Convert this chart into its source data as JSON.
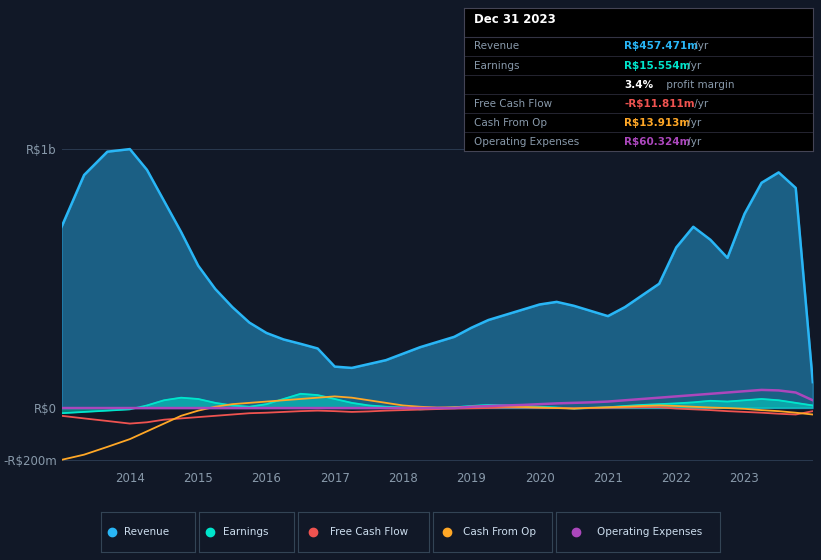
{
  "bg_color": "#111827",
  "plot_bg_color": "#111827",
  "grid_color": "#2a3a50",
  "text_color": "#8899aa",
  "title_color": "#ffffff",
  "revenue_color": "#29b6f6",
  "earnings_color": "#00e5cc",
  "free_cash_flow_color": "#ef5350",
  "cash_from_op_color": "#ffa726",
  "operating_expenses_color": "#ab47bc",
  "revenue_fill_alpha": 0.45,
  "earnings_fill_alpha": 0.5,
  "years": [
    2013.0,
    2013.33,
    2013.67,
    2014.0,
    2014.25,
    2014.5,
    2014.75,
    2015.0,
    2015.25,
    2015.5,
    2015.75,
    2016.0,
    2016.25,
    2016.5,
    2016.75,
    2017.0,
    2017.25,
    2017.5,
    2017.75,
    2018.0,
    2018.25,
    2018.5,
    2018.75,
    2019.0,
    2019.25,
    2019.5,
    2019.75,
    2020.0,
    2020.25,
    2020.5,
    2020.75,
    2021.0,
    2021.25,
    2021.5,
    2021.75,
    2022.0,
    2022.25,
    2022.5,
    2022.75,
    2023.0,
    2023.25,
    2023.5,
    2023.75,
    2024.0
  ],
  "revenue": [
    700,
    900,
    990,
    1000,
    920,
    800,
    680,
    550,
    460,
    390,
    330,
    290,
    265,
    248,
    230,
    160,
    155,
    170,
    185,
    210,
    235,
    255,
    275,
    310,
    340,
    360,
    380,
    400,
    410,
    395,
    375,
    355,
    390,
    435,
    480,
    620,
    700,
    650,
    580,
    750,
    870,
    910,
    850,
    100
  ],
  "earnings": [
    -20,
    -15,
    -10,
    -5,
    10,
    30,
    40,
    35,
    20,
    10,
    5,
    15,
    35,
    55,
    50,
    35,
    20,
    10,
    5,
    2,
    -5,
    -2,
    3,
    8,
    12,
    10,
    8,
    5,
    2,
    -2,
    0,
    3,
    8,
    12,
    15,
    18,
    22,
    28,
    25,
    30,
    35,
    30,
    20,
    10
  ],
  "free_cash_flow": [
    -30,
    -40,
    -50,
    -60,
    -55,
    -45,
    -40,
    -35,
    -30,
    -25,
    -20,
    -18,
    -15,
    -12,
    -10,
    -12,
    -15,
    -13,
    -10,
    -8,
    -6,
    -4,
    -2,
    -1,
    0,
    2,
    2,
    1,
    0,
    -1,
    0,
    1,
    2,
    3,
    3,
    -2,
    -5,
    -8,
    -12,
    -15,
    -18,
    -22,
    -25,
    -12
  ],
  "cash_from_op": [
    -200,
    -180,
    -150,
    -120,
    -90,
    -60,
    -30,
    -10,
    5,
    15,
    20,
    25,
    30,
    35,
    40,
    45,
    40,
    30,
    20,
    10,
    5,
    2,
    3,
    5,
    8,
    6,
    4,
    2,
    0,
    -2,
    1,
    3,
    5,
    8,
    10,
    8,
    5,
    2,
    0,
    -3,
    -8,
    -12,
    -18,
    -25
  ],
  "operating_expenses": [
    0,
    0,
    0,
    0,
    0,
    0,
    0,
    0,
    0,
    0,
    0,
    0,
    0,
    0,
    0,
    0,
    0,
    0,
    0,
    0,
    0,
    0,
    0,
    5,
    8,
    10,
    12,
    15,
    18,
    20,
    22,
    25,
    30,
    35,
    40,
    45,
    50,
    55,
    60,
    65,
    70,
    68,
    60,
    30
  ],
  "ylim": [
    -230,
    1100
  ],
  "xlim": [
    2013.0,
    2024.0
  ],
  "yticks": [
    -200,
    0,
    1000
  ],
  "ytick_labels": [
    "-R$200m",
    "R$0",
    "R$1b"
  ],
  "xtick_years": [
    2014,
    2015,
    2016,
    2017,
    2018,
    2019,
    2020,
    2021,
    2022,
    2023
  ],
  "info_box": {
    "title": "Dec 31 2023",
    "rows": [
      {
        "label": "Revenue",
        "value": "R$457.471m",
        "value_color": "#29b6f6",
        "suffix": " /yr"
      },
      {
        "label": "Earnings",
        "value": "R$15.554m",
        "value_color": "#00e5cc",
        "suffix": " /yr"
      },
      {
        "label": "",
        "value": "3.4%",
        "value_color": "#ffffff",
        "suffix": " profit margin",
        "bold": true
      },
      {
        "label": "Free Cash Flow",
        "value": "-R$11.811m",
        "value_color": "#ef5350",
        "suffix": " /yr"
      },
      {
        "label": "Cash From Op",
        "value": "R$13.913m",
        "value_color": "#ffa726",
        "suffix": " /yr"
      },
      {
        "label": "Operating Expenses",
        "value": "R$60.324m",
        "value_color": "#ab47bc",
        "suffix": " /yr"
      }
    ]
  },
  "legend_items": [
    {
      "label": "Revenue",
      "color": "#29b6f6"
    },
    {
      "label": "Earnings",
      "color": "#00e5cc"
    },
    {
      "label": "Free Cash Flow",
      "color": "#ef5350"
    },
    {
      "label": "Cash From Op",
      "color": "#ffa726"
    },
    {
      "label": "Operating Expenses",
      "color": "#ab47bc"
    }
  ]
}
